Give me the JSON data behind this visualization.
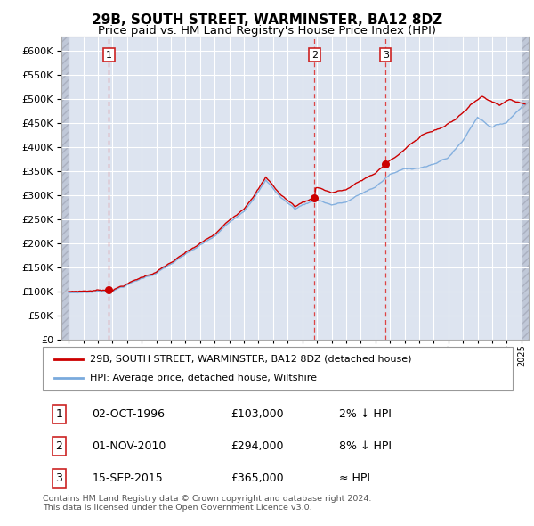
{
  "title": "29B, SOUTH STREET, WARMINSTER, BA12 8DZ",
  "subtitle": "Price paid vs. HM Land Registry's House Price Index (HPI)",
  "ytick_vals": [
    0,
    50000,
    100000,
    150000,
    200000,
    250000,
    300000,
    350000,
    400000,
    450000,
    500000,
    550000,
    600000
  ],
  "ylim": [
    0,
    630000
  ],
  "xlim_start": 1993.5,
  "xlim_end": 2025.5,
  "sale_points": [
    {
      "year": 1996.75,
      "price": 103000,
      "label": "1"
    },
    {
      "year": 2010.83,
      "price": 294000,
      "label": "2"
    },
    {
      "year": 2015.7,
      "price": 365000,
      "label": "3"
    }
  ],
  "hpi_line_color": "#7aaadd",
  "price_line_color": "#cc0000",
  "dashed_vline_color": "#dd4444",
  "plot_bg_color": "#dde4f0",
  "grid_color": "#ffffff",
  "hatch_color": "#c0c8d8",
  "legend_entries": [
    "29B, SOUTH STREET, WARMINSTER, BA12 8DZ (detached house)",
    "HPI: Average price, detached house, Wiltshire"
  ],
  "table_rows": [
    {
      "num": "1",
      "date": "02-OCT-1996",
      "price": "£103,000",
      "hpi": "2% ↓ HPI"
    },
    {
      "num": "2",
      "date": "01-NOV-2010",
      "price": "£294,000",
      "hpi": "8% ↓ HPI"
    },
    {
      "num": "3",
      "date": "15-SEP-2015",
      "price": "£365,000",
      "hpi": "≈ HPI"
    }
  ],
  "footer": "Contains HM Land Registry data © Crown copyright and database right 2024.\nThis data is licensed under the Open Government Licence v3.0.",
  "title_fontsize": 11,
  "subtitle_fontsize": 9.5
}
